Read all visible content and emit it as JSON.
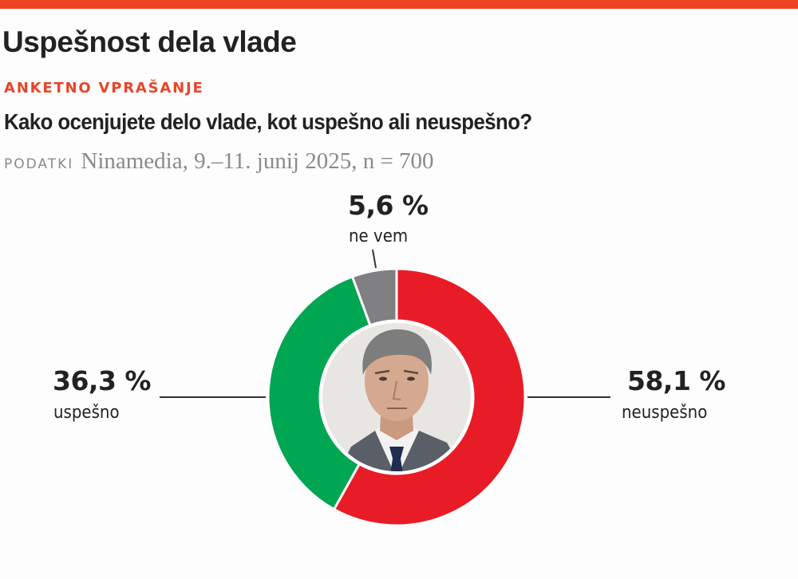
{
  "header": {
    "title": "Uspešnost dela vlade",
    "kicker": "ANKETNO VPRAŠANJE",
    "question": "Kako ocenjujete delo vlade, kot uspešno ali neuspešno?",
    "source_label": "PODATKI",
    "source_text": "Ninamedia, 9.–11. junij 2025, n = 700"
  },
  "colors": {
    "accent_bar": "#ef4423",
    "kicker": "#e8442a",
    "neuspesno": "#e81c27",
    "uspesno": "#00a651",
    "ne_vem": "#808083"
  },
  "labels": {
    "ne_vem": {
      "value": "5,6 %",
      "name": "ne vem"
    },
    "uspesno": {
      "value": "36,3 %",
      "name": "uspešno"
    },
    "neuspesno": {
      "value": "58,1 %",
      "name": "neuspešno"
    }
  },
  "center_image": "portrait-photo",
  "chart_data": {
    "type": "pie",
    "variant": "donut",
    "title": "Uspešnost dela vlade",
    "subtitle": "Kako ocenjujete delo vlade, kot uspešno ali neuspešno?",
    "source": "Ninamedia, 9.–11. junij 2025, n = 700",
    "categories": [
      "neuspešno",
      "uspešno",
      "ne vem"
    ],
    "values": [
      58.1,
      36.3,
      5.6
    ],
    "unit": "%",
    "colors": [
      "#e81c27",
      "#00a651",
      "#808083"
    ],
    "start_angle": "12 o'clock, clockwise",
    "center": "portrait photo"
  }
}
